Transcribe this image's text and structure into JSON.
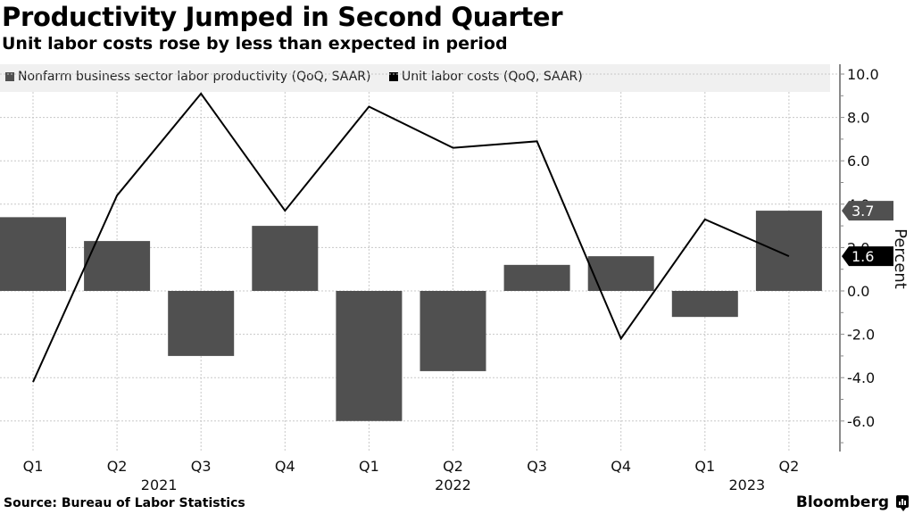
{
  "header": {
    "title": "Productivity Jumped in Second Quarter",
    "subtitle": "Unit labor costs rose by less than expected in period"
  },
  "legend": [
    {
      "label": "Nonfarm business sector labor productivity (QoQ, SAAR)",
      "color": "#505050"
    },
    {
      "label": "Unit labor costs (QoQ, SAAR)",
      "color": "#000000"
    }
  ],
  "footer": {
    "source": "Source: Bureau of Labor Statistics",
    "brand": "Bloomberg"
  },
  "chart_data": {
    "type": "bar",
    "title": "Productivity Jumped in Second Quarter",
    "subtitle": "Unit labor costs rose by less than expected in period",
    "categories": [
      "Q1",
      "Q2",
      "Q3",
      "Q4",
      "Q1",
      "Q2",
      "Q3",
      "Q4",
      "Q1",
      "Q2"
    ],
    "year_labels": [
      {
        "label": "2021",
        "under_category_index": 1.5
      },
      {
        "label": "2022",
        "under_category_index": 5
      },
      {
        "label": "2023",
        "under_category_index": 8.5
      }
    ],
    "series": [
      {
        "name": "Nonfarm business sector labor productivity (QoQ, SAAR)",
        "type": "bar",
        "color": "#505050",
        "values": [
          3.4,
          2.3,
          -3.0,
          3.0,
          -6.0,
          -3.7,
          1.2,
          1.6,
          -1.2,
          3.7
        ]
      },
      {
        "name": "Unit labor costs (QoQ, SAAR)",
        "type": "line",
        "color": "#000000",
        "values": [
          -4.2,
          4.4,
          9.1,
          3.7,
          8.5,
          6.6,
          6.9,
          -2.2,
          3.3,
          1.6
        ]
      }
    ],
    "last_value_tags": [
      {
        "series": 0,
        "label": "3.7",
        "color": "#505050"
      },
      {
        "series": 1,
        "label": "1.6",
        "color": "#000000"
      }
    ],
    "xlabel": "",
    "ylabel": "Percent",
    "ylim": [
      -7.5,
      10.5
    ],
    "yticks": [
      10.0,
      8.0,
      6.0,
      4.0,
      2.0,
      0.0,
      -2.0,
      -4.0,
      -6.0
    ],
    "ytick_labels": [
      "10.0",
      "8.0",
      "6.0",
      "4.0",
      "2.0",
      "0.0",
      "-2.0",
      "-4.0",
      "-6.0"
    ],
    "y_axis_side": "right",
    "grid": true,
    "legend_position": "top"
  }
}
